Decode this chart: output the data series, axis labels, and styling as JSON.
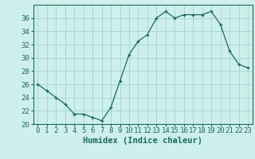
{
  "x": [
    0,
    1,
    2,
    3,
    4,
    5,
    6,
    7,
    8,
    9,
    10,
    11,
    12,
    13,
    14,
    15,
    16,
    17,
    18,
    19,
    20,
    21,
    22,
    23
  ],
  "y": [
    26,
    25,
    24,
    23,
    21.5,
    21.5,
    21,
    20.5,
    22.5,
    26.5,
    30.5,
    32.5,
    33.5,
    36,
    37,
    36,
    36.5,
    36.5,
    36.5,
    37,
    35,
    31,
    29,
    28.5
  ],
  "line_color": "#1a6b5a",
  "marker": "+",
  "bg_color": "#cef0ec",
  "grid_color": "#a8d8d4",
  "xlabel": "Humidex (Indice chaleur)",
  "ylim": [
    20,
    38
  ],
  "xlim": [
    -0.5,
    23.5
  ],
  "yticks": [
    20,
    22,
    24,
    26,
    28,
    30,
    32,
    34,
    36
  ],
  "xticks": [
    0,
    1,
    2,
    3,
    4,
    5,
    6,
    7,
    8,
    9,
    10,
    11,
    12,
    13,
    14,
    15,
    16,
    17,
    18,
    19,
    20,
    21,
    22,
    23
  ],
  "label_fontsize": 7.5,
  "tick_fontsize": 6.5
}
